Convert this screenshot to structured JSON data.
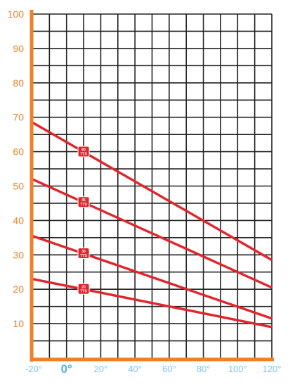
{
  "chart_data": {
    "type": "line",
    "title": "",
    "xlabel": "",
    "ylabel": "",
    "xlim": [
      -20,
      120
    ],
    "ylim": [
      0,
      100
    ],
    "grid": true,
    "y_ticks": [
      10,
      20,
      30,
      40,
      50,
      60,
      70,
      80,
      90,
      100
    ],
    "y_tick_labels": [
      "10",
      "20",
      "30",
      "40",
      "50",
      "60",
      "70",
      "80",
      "90",
      "100"
    ],
    "x_ticks": [
      -20,
      0,
      20,
      40,
      60,
      80,
      100,
      120
    ],
    "x_tick_labels": [
      "-20°",
      "0°",
      "20°",
      "40°",
      "60°",
      "80°",
      "100°",
      "120°"
    ],
    "series": [
      {
        "name": "",
        "label_line1": "60",
        "label_line2": "TTS",
        "label_x": 10,
        "x": [
          -20,
          120
        ],
        "y": [
          68.5,
          28.5
        ]
      },
      {
        "name": "",
        "label_line1": "45",
        "label_line2": "TTS",
        "label_x": 10,
        "x": [
          -20,
          120
        ],
        "y": [
          52,
          20.5
        ]
      },
      {
        "name": "",
        "label_line1": "30",
        "label_line2": "TTS",
        "label_x": 10,
        "x": [
          -20,
          120
        ],
        "y": [
          35.5,
          11.5
        ]
      },
      {
        "name": "",
        "label_line1": "20",
        "label_line2": "TTS",
        "label_x": 10,
        "x": [
          -20,
          120
        ],
        "y": [
          23,
          9
        ]
      }
    ],
    "colors": {
      "axis": "#f07f2a",
      "grid": "#222222",
      "line": "#e3242b",
      "y_labels": "#f07f2a",
      "x_labels": "#7fc6ea",
      "x_zero_label": "#4fb3e6"
    }
  }
}
